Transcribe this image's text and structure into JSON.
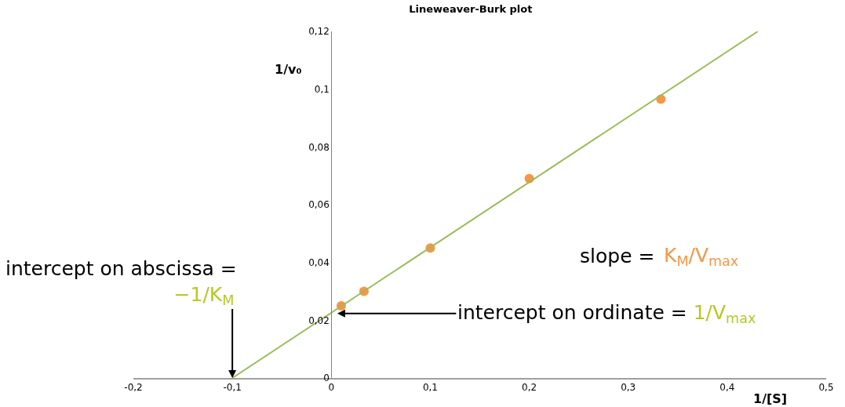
{
  "chart_data": {
    "type": "scatter",
    "title": "Lineweaver-Burk plot",
    "xlabel": "1/[S]",
    "ylabel": "1/v₀",
    "series": [
      {
        "color": "#f79646",
        "x": [
          0.01,
          0.033,
          0.1,
          0.2,
          0.333
        ],
        "values": [
          0.025,
          0.03,
          0.045,
          0.069,
          0.0965
        ],
        "marker": "circle"
      },
      {
        "type": "line",
        "color": "#9bbb59",
        "x": [
          -0.1,
          0.431
        ],
        "values": [
          0,
          0.12
        ],
        "marker": "none",
        "line_style": "solid"
      }
    ],
    "xlim": [
      -0.2,
      0.5
    ],
    "ylim": [
      0,
      0.12
    ],
    "xticks": [
      {
        "value": -0.2,
        "label": "-0,2"
      },
      {
        "value": -0.1,
        "label": "-0,1"
      },
      0,
      {
        "value": 0.1,
        "label": "0,1"
      },
      {
        "value": 0.2,
        "label": "0,2"
      },
      {
        "value": 0.3,
        "label": "0,3"
      },
      {
        "value": 0.4,
        "label": "0,4"
      },
      {
        "value": 0.5,
        "label": "0,5"
      }
    ],
    "yticks": [
      0,
      {
        "value": 0.02,
        "label": "0,02"
      },
      {
        "value": 0.04,
        "label": "0,04"
      },
      {
        "value": 0.06,
        "label": "0,06"
      },
      {
        "value": 0.08,
        "label": "0,08"
      },
      {
        "value": 0.1,
        "label": "0,1"
      },
      {
        "value": 0.12,
        "label": "0,12"
      }
    ],
    "annotations": [
      "intercept on abscissa =",
      {
        "text": "−1/K$_{M}$",
        "x": -0.1,
        "y": 0
      },
      "slope = ",
      "K$_{M}$/V$_{max}$",
      {
        "text": "intercept on ordinate = ",
        "x": 0.006,
        "y": 0.0223
      },
      "1/V$_{max}$"
    ]
  }
}
